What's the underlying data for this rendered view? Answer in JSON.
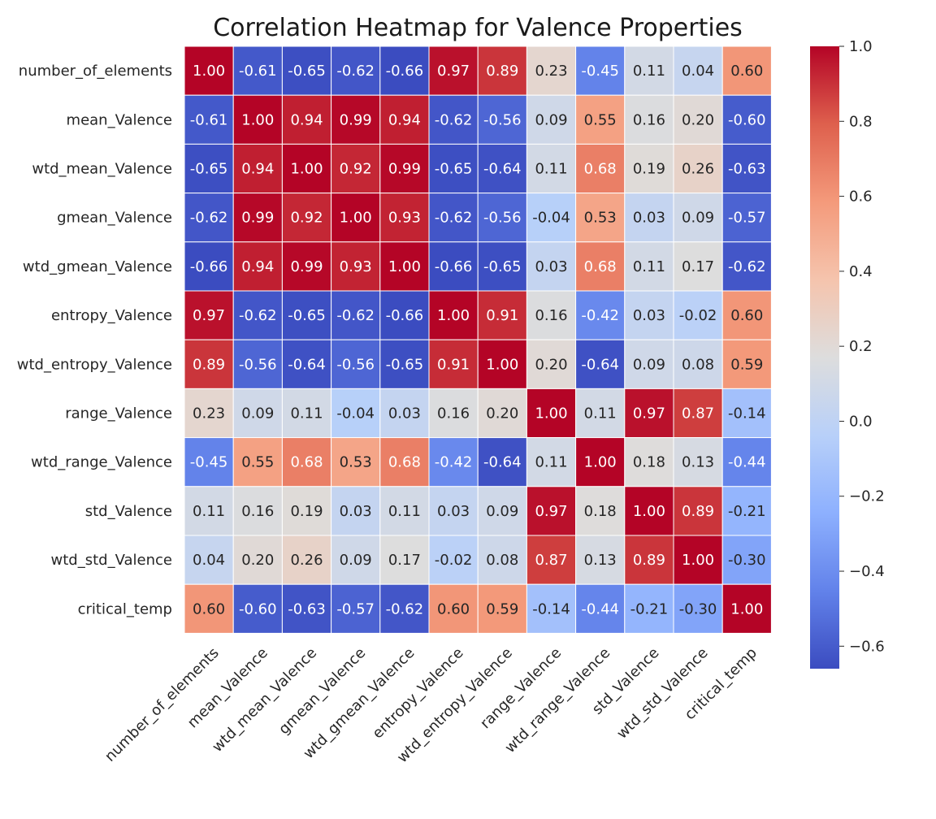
{
  "chart_data": {
    "type": "heatmap",
    "title": "Correlation Heatmap for Valence Properties",
    "xlabel": "",
    "ylabel": "",
    "colormap": "coolwarm",
    "vmin": -0.66,
    "vmax": 1.0,
    "grid": true,
    "annotations": true,
    "row_labels": [
      "number_of_elements",
      "mean_Valence",
      "wtd_mean_Valence",
      "gmean_Valence",
      "wtd_gmean_Valence",
      "entropy_Valence",
      "wtd_entropy_Valence",
      "range_Valence",
      "wtd_range_Valence",
      "std_Valence",
      "wtd_std_Valence",
      "critical_temp"
    ],
    "col_labels": [
      "number_of_elements",
      "mean_Valence",
      "wtd_mean_Valence",
      "gmean_Valence",
      "wtd_gmean_Valence",
      "entropy_Valence",
      "wtd_entropy_Valence",
      "range_Valence",
      "wtd_range_Valence",
      "std_Valence",
      "wtd_std_Valence",
      "critical_temp"
    ],
    "values": [
      [
        1.0,
        -0.61,
        -0.65,
        -0.62,
        -0.66,
        0.97,
        0.89,
        0.23,
        -0.45,
        0.11,
        0.04,
        0.6
      ],
      [
        -0.61,
        1.0,
        0.94,
        0.99,
        0.94,
        -0.62,
        -0.56,
        0.09,
        0.55,
        0.16,
        0.2,
        -0.6
      ],
      [
        -0.65,
        0.94,
        1.0,
        0.92,
        0.99,
        -0.65,
        -0.64,
        0.11,
        0.68,
        0.19,
        0.26,
        -0.63
      ],
      [
        -0.62,
        0.99,
        0.92,
        1.0,
        0.93,
        -0.62,
        -0.56,
        -0.04,
        0.53,
        0.03,
        0.09,
        -0.57
      ],
      [
        -0.66,
        0.94,
        0.99,
        0.93,
        1.0,
        -0.66,
        -0.65,
        0.03,
        0.68,
        0.11,
        0.17,
        -0.62
      ],
      [
        0.97,
        -0.62,
        -0.65,
        -0.62,
        -0.66,
        1.0,
        0.91,
        0.16,
        -0.42,
        0.03,
        -0.02,
        0.6
      ],
      [
        0.89,
        -0.56,
        -0.64,
        -0.56,
        -0.65,
        0.91,
        1.0,
        0.2,
        -0.64,
        0.09,
        0.08,
        0.59
      ],
      [
        0.23,
        0.09,
        0.11,
        -0.04,
        0.03,
        0.16,
        0.2,
        1.0,
        0.11,
        0.97,
        0.87,
        -0.14
      ],
      [
        -0.45,
        0.55,
        0.68,
        0.53,
        0.68,
        -0.42,
        -0.64,
        0.11,
        1.0,
        0.18,
        0.13,
        -0.44
      ],
      [
        0.11,
        0.16,
        0.19,
        0.03,
        0.11,
        0.03,
        0.09,
        0.97,
        0.18,
        1.0,
        0.89,
        -0.21
      ],
      [
        0.04,
        0.2,
        0.26,
        0.09,
        0.17,
        -0.02,
        0.08,
        0.87,
        0.13,
        0.89,
        1.0,
        -0.3
      ],
      [
        0.6,
        -0.6,
        -0.63,
        -0.57,
        -0.62,
        0.6,
        0.59,
        -0.14,
        -0.44,
        -0.21,
        -0.3,
        1.0
      ]
    ],
    "colorbar": {
      "ticks": [
        1.0,
        0.8,
        0.6,
        0.4,
        0.2,
        0.0,
        -0.2,
        -0.4,
        -0.6
      ],
      "tick_labels": [
        "1.0",
        "0.8",
        "0.6",
        "0.4",
        "0.2",
        "0.0",
        "−0.2",
        "−0.4",
        "−0.6"
      ]
    }
  }
}
